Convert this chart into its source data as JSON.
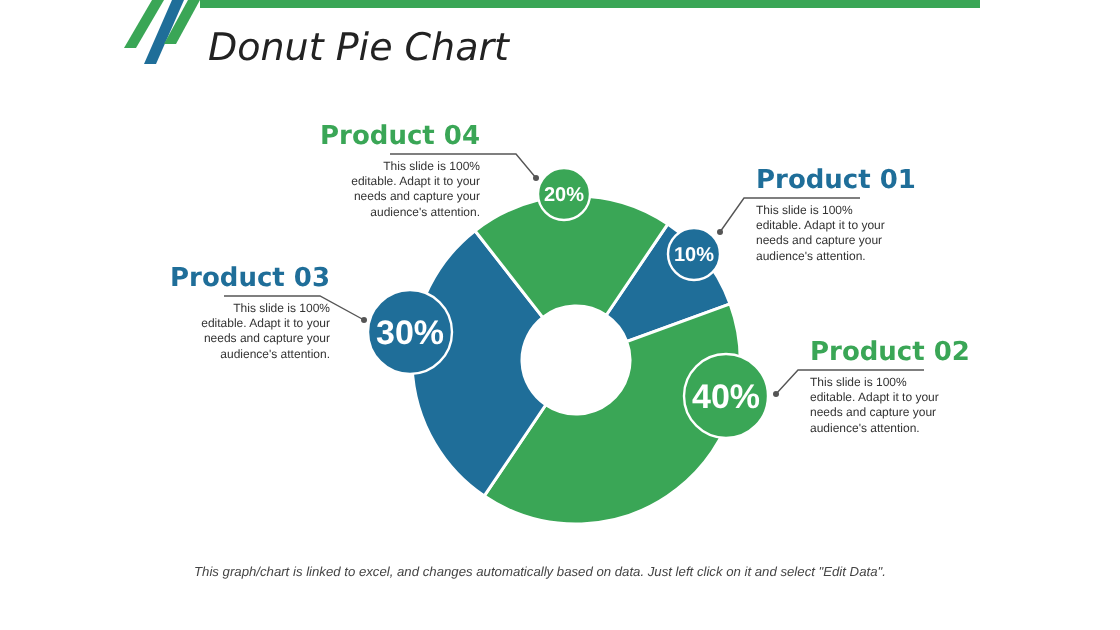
{
  "chart_data": {
    "type": "donut",
    "title": "Donut Pie Chart",
    "categories": [
      "Product 01",
      "Product 02",
      "Product 03",
      "Product 04"
    ],
    "values": [
      10,
      40,
      30,
      20
    ],
    "colors": [
      "#1f6e99",
      "#3aa656",
      "#1f6e99",
      "#3aa656"
    ],
    "value_labels": [
      "10%",
      "40%",
      "30%",
      "20%"
    ],
    "annotations": [
      "This slide is 100% editable. Adapt it to your needs and capture your audience's attention.",
      "This slide is 100% editable. Adapt it to your needs and capture your audience's attention.",
      "This slide is 100% editable. Adapt it to your needs and capture your audience's attention.",
      "This slide is 100% editable. Adapt it to your needs and capture your audience's attention.",
      "This graph/chart is linked to excel, and changes automatically based on data. Just left click on it and select \"Edit Data\"."
    ]
  }
}
